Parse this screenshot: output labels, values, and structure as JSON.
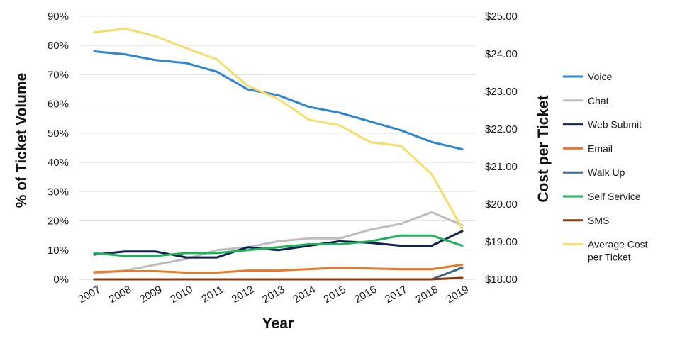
{
  "chart_data": {
    "type": "line",
    "xlabel": "Year",
    "ylabel": "% of Ticket Volume",
    "y2label": "Cost per Ticket",
    "x": [
      "2007",
      "2008",
      "2009",
      "2010",
      "2011",
      "2012",
      "2013",
      "2014",
      "2015",
      "2016",
      "2017",
      "2018",
      "2019"
    ],
    "ylim": [
      0,
      90
    ],
    "yticks": [
      "0%",
      "10%",
      "20%",
      "30%",
      "40%",
      "50%",
      "60%",
      "70%",
      "80%",
      "90%"
    ],
    "y2lim": [
      18,
      25
    ],
    "y2ticks": [
      "$18.00",
      "$19.00",
      "$20.00",
      "$21.00",
      "$22.00",
      "$23.00",
      "$24.00",
      "$25.00"
    ],
    "grid": true,
    "legend_position": "right",
    "series": [
      {
        "name": "Voice",
        "axis": "left",
        "color": "#2e86d1",
        "values": [
          78,
          77,
          75,
          74,
          71,
          65,
          63,
          59,
          57,
          54,
          51,
          47,
          44.5
        ]
      },
      {
        "name": "Chat",
        "axis": "left",
        "color": "#bdbdbd",
        "values": [
          2,
          3,
          5,
          7,
          10,
          11,
          13,
          14,
          14,
          17,
          19,
          23,
          18.5
        ]
      },
      {
        "name": "Web Submit",
        "axis": "left",
        "color": "#10204f",
        "values": [
          8.5,
          9.5,
          9.5,
          7.5,
          7.5,
          11,
          10,
          11.5,
          13,
          12.5,
          11.5,
          11.5,
          16.5
        ]
      },
      {
        "name": "Email",
        "axis": "left",
        "color": "#e8782a",
        "values": [
          2.5,
          2.8,
          2.8,
          2.3,
          2.3,
          3,
          3,
          3.5,
          4,
          3.7,
          3.5,
          3.5,
          5
        ]
      },
      {
        "name": "Walk Up",
        "axis": "left",
        "color": "#3f648a",
        "values": [
          0,
          0,
          0,
          0,
          0,
          0,
          0,
          0,
          0,
          0,
          0,
          0,
          4
        ]
      },
      {
        "name": "Self Service",
        "axis": "left",
        "color": "#1eb35a",
        "values": [
          9,
          8,
          8,
          9,
          9,
          10,
          11,
          12,
          12,
          13,
          15,
          15,
          11.5
        ]
      },
      {
        "name": "SMS",
        "axis": "left",
        "color": "#8b3a10",
        "values": [
          0,
          0,
          0,
          0,
          0,
          0,
          0,
          0,
          0,
          0,
          0,
          0,
          0.5
        ]
      },
      {
        "name": "Average Cost per Ticket",
        "legend_lines": [
          "Average Cost",
          "per Ticket"
        ],
        "axis": "right",
        "color": "#f4dd6b",
        "values": [
          24.57,
          24.67,
          24.47,
          24.15,
          23.85,
          23.15,
          22.8,
          22.25,
          22.1,
          21.65,
          21.55,
          20.8,
          19.35
        ]
      }
    ]
  }
}
